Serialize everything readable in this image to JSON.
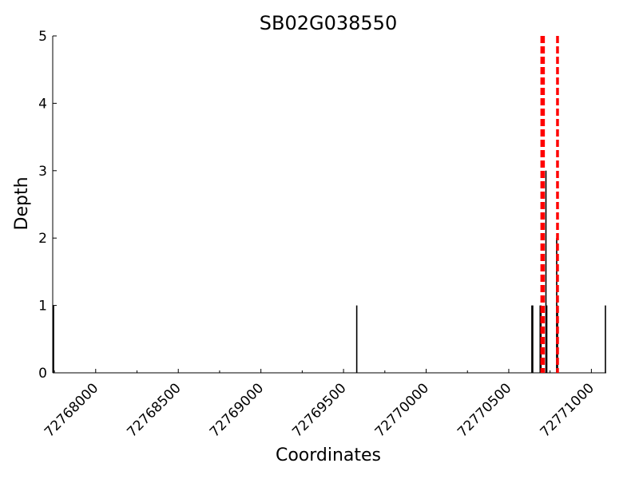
{
  "chart_data": {
    "type": "bar",
    "title": "SB02G038550",
    "xlabel": "Coordinates",
    "ylabel": "Depth",
    "xlim": [
      72767740,
      72771090
    ],
    "ylim": [
      0,
      5
    ],
    "x_ticks": [
      72768000,
      72768500,
      72769000,
      72769500,
      72770000,
      72770500,
      72771000
    ],
    "y_ticks": [
      0,
      1,
      2,
      3,
      4,
      5
    ],
    "grid": false,
    "depth_bars": [
      {
        "x": 72767745,
        "depth": 1
      },
      {
        "x": 72769580,
        "depth": 1
      },
      {
        "x": 72770640,
        "depth": 1
      },
      {
        "x": 72770645,
        "depth": 1
      },
      {
        "x": 72770690,
        "depth": 1
      },
      {
        "x": 72770695,
        "depth": 1
      },
      {
        "x": 72770725,
        "depth": 3
      },
      {
        "x": 72770730,
        "depth": 1
      },
      {
        "x": 72770790,
        "depth": 2
      },
      {
        "x": 72770795,
        "depth": 1
      },
      {
        "x": 72771085,
        "depth": 1
      }
    ],
    "markers": [
      72770700,
      72770710,
      72770795
    ],
    "colors": {
      "bars": "#000000",
      "markers": "#ff0000"
    }
  }
}
